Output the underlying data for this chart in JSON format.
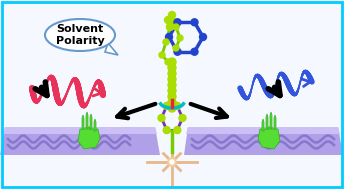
{
  "bg_color": "#f5f8ff",
  "border_color": "#00ccff",
  "title": "Solvent\nPolarity",
  "speech_bubble_edge": "#6699cc",
  "platform_color": "#b0a0e8",
  "platform_top_color": "#cbbff5",
  "red_helix_color": "#e8325a",
  "blue_helix_color": "#3355dd",
  "molecule_green": "#aadd00",
  "molecule_purple": "#7733bb",
  "molecule_blue": "#2244cc",
  "molecule_cyan": "#00bbcc",
  "molecule_lime": "#77cc00",
  "hand_color": "#55dd33",
  "hand_dark": "#33aa22",
  "star_color": "#e8b888",
  "star_center": "#f0d0a0",
  "wave_color": "#8877cc",
  "black": "#000000"
}
